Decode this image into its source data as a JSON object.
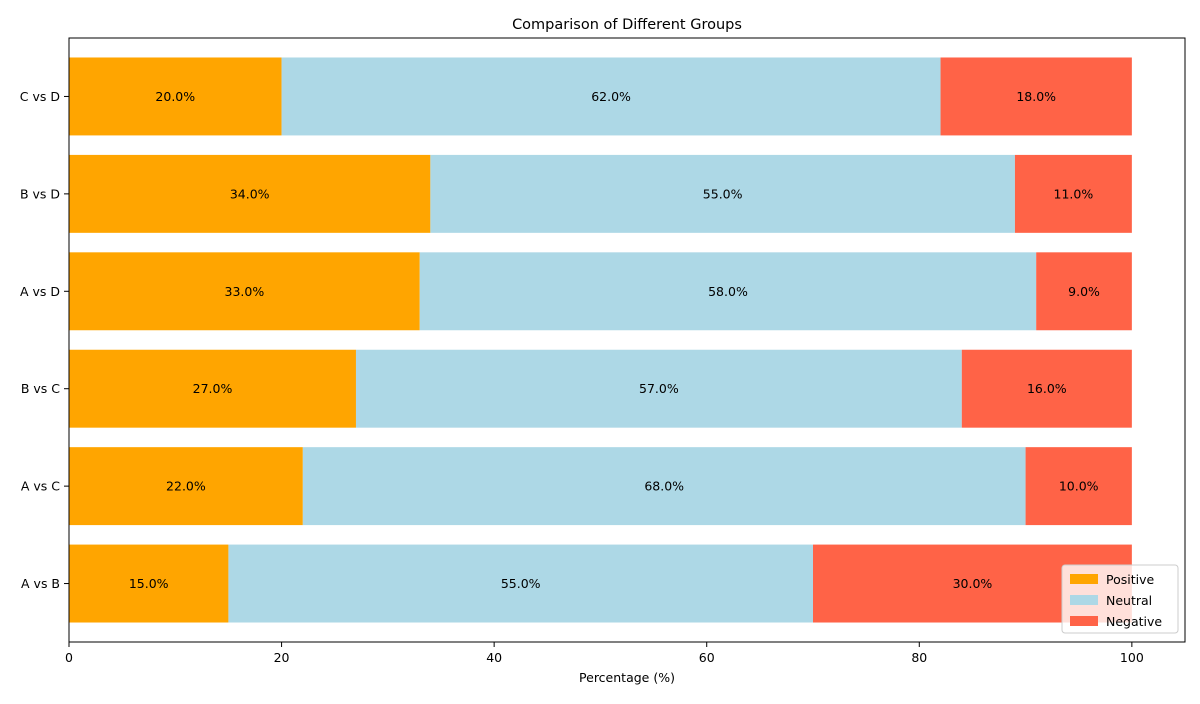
{
  "chart_data": {
    "type": "bar",
    "orientation": "horizontal",
    "stacked": true,
    "title": "Comparison of Different Groups",
    "xlabel": "Percentage (%)",
    "ylabel": "",
    "xlim": [
      0,
      105
    ],
    "xticks": [
      0,
      20,
      40,
      60,
      80,
      100
    ],
    "categories": [
      "A vs B",
      "A vs C",
      "B vs C",
      "A vs D",
      "B vs D",
      "C vs D"
    ],
    "series": [
      {
        "name": "Positive",
        "color": "#ffa500",
        "values": [
          15.0,
          22.0,
          27.0,
          33.0,
          34.0,
          20.0
        ]
      },
      {
        "name": "Neutral",
        "color": "#add8e6",
        "values": [
          55.0,
          68.0,
          57.0,
          58.0,
          55.0,
          62.0
        ]
      },
      {
        "name": "Negative",
        "color": "#ff6347",
        "values": [
          30.0,
          10.0,
          16.0,
          9.0,
          11.0,
          18.0
        ]
      }
    ],
    "value_label_suffix": "%",
    "grid": false,
    "legend_position": "lower-right"
  }
}
